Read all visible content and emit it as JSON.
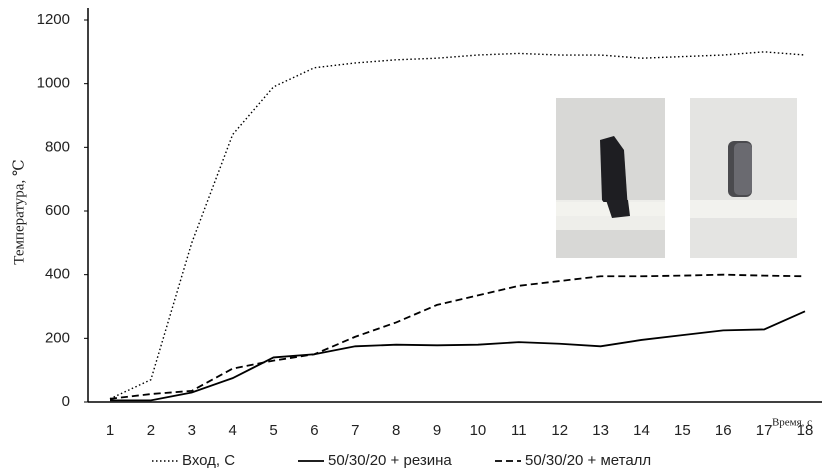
{
  "chart_data": {
    "type": "line",
    "categories": [
      1,
      2,
      3,
      4,
      5,
      6,
      7,
      8,
      9,
      10,
      11,
      12,
      13,
      14,
      15,
      16,
      17,
      18
    ],
    "series": [
      {
        "name": "Вход, С",
        "color": "#000000",
        "style": "dotted",
        "values": [
          10,
          70,
          500,
          840,
          990,
          1050,
          1065,
          1075,
          1080,
          1090,
          1095,
          1090,
          1090,
          1080,
          1085,
          1090,
          1100,
          1090
        ]
      },
      {
        "name": "50/30/20 + резина",
        "color": "#000000",
        "style": "solid",
        "values": [
          5,
          5,
          30,
          75,
          140,
          150,
          175,
          180,
          178,
          180,
          188,
          183,
          175,
          195,
          210,
          225,
          228,
          285
        ]
      },
      {
        "name": "50/30/20 + металл",
        "color": "#000000",
        "style": "dashed",
        "values": [
          10,
          25,
          35,
          105,
          130,
          150,
          205,
          250,
          305,
          335,
          365,
          380,
          395,
          395,
          397,
          400,
          397,
          395
        ]
      }
    ],
    "ylabel": "Температура, ℃",
    "xlabel": "Время, с",
    "ylim": [
      0,
      1200
    ],
    "yticks": [
      0,
      200,
      400,
      600,
      800,
      1000,
      1200
    ],
    "grid": false,
    "legend": "bottom"
  }
}
